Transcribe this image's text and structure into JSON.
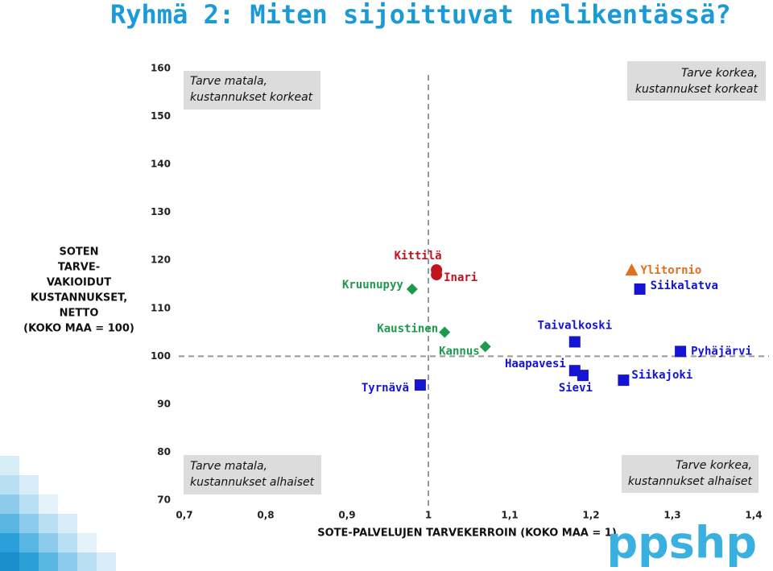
{
  "chart_data": {
    "type": "scatter",
    "title": "Ryhmä 2: Miten sijoittuvat nelikentässä?",
    "x_label": "SOTE-PALVELUJEN TARVEKERROIN (KOKO MAA = 1)",
    "y_label": [
      "SOTEN",
      "TARVE-",
      "VAKIOIDUT",
      "KUSTANNUKSET,",
      "NETTO",
      "(KOKO MAA = 100)"
    ],
    "xlim": [
      0.7,
      1.4
    ],
    "xticks": [
      {
        "value": 0.7,
        "label": "0,7"
      },
      {
        "value": 0.8,
        "label": "0,8"
      },
      {
        "value": 0.9,
        "label": "0,9"
      },
      1,
      {
        "value": 1.1,
        "label": "1,1"
      },
      {
        "value": 1.2,
        "label": "1,2"
      },
      {
        "value": 1.3,
        "label": "1,3"
      },
      {
        "value": 1.4,
        "label": "1,4"
      }
    ],
    "ylim": [
      70,
      160
    ],
    "yticks": [
      70,
      80,
      90,
      100,
      110,
      120,
      130,
      140,
      150,
      160
    ],
    "x_reference": 1,
    "y_reference": 100,
    "quadrants": {
      "top_left": [
        "Tarve matala,",
        "kustannukset korkeat"
      ],
      "top_right": [
        "Tarve korkea,",
        "kustannukset korkeat"
      ],
      "bottom_left": [
        "Tarve matala,",
        "kustannukset alhaiset"
      ],
      "bottom_right": [
        "Tarve korkea,",
        "kustannukset alhaiset"
      ]
    },
    "points": [
      {
        "label": "Kittilä",
        "x": 1.01,
        "y": 118,
        "marker": "circle",
        "color": "#c0141e"
      },
      {
        "label": "Inari",
        "x": 1.01,
        "y": 117,
        "marker": "circle",
        "color": "#c0141e"
      },
      {
        "label": "Kruunupyy",
        "x": 0.98,
        "y": 114,
        "marker": "diamond",
        "color": "#1e9a50"
      },
      {
        "label": "Kaustinen",
        "x": 1.02,
        "y": 105,
        "marker": "diamond",
        "color": "#1e9a50"
      },
      {
        "label": "Kannus",
        "x": 1.07,
        "y": 102,
        "marker": "diamond",
        "color": "#1e9a50"
      },
      {
        "label": "Taivalkoski",
        "x": 1.18,
        "y": 103,
        "marker": "square",
        "color": "#1414d2"
      },
      {
        "label": "Haapavesi",
        "x": 1.18,
        "y": 97,
        "marker": "square",
        "color": "#1414d2"
      },
      {
        "label": "Sievi",
        "x": 1.19,
        "y": 96,
        "marker": "square",
        "color": "#1414d2"
      },
      {
        "label": "Tyrnävä",
        "x": 0.99,
        "y": 94,
        "marker": "square",
        "color": "#1414d2"
      },
      {
        "label": "Siikajoki",
        "x": 1.24,
        "y": 95,
        "marker": "square",
        "color": "#1414d2"
      },
      {
        "label": "Siikalatva",
        "x": 1.26,
        "y": 114,
        "marker": "square",
        "color": "#1414d2"
      },
      {
        "label": "Pyhäjärvi",
        "x": 1.31,
        "y": 101,
        "marker": "square",
        "color": "#1414d2"
      },
      {
        "label": "Ylitornio",
        "x": 1.25,
        "y": 118,
        "marker": "triangle",
        "color": "#e07020"
      }
    ]
  },
  "logo": "ppshp"
}
